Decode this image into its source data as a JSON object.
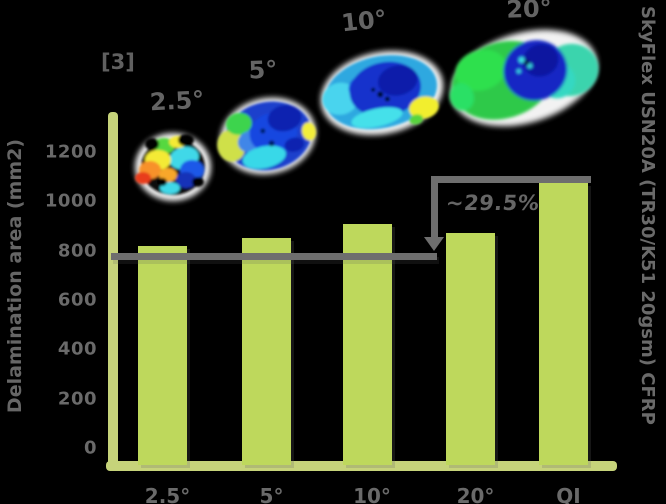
{
  "figure": {
    "citation": "[3]",
    "material_label": "SkyFlex USN20A (TR30/K51 20gsm) CFRP",
    "inset_labels": [
      "2.5°",
      "5°",
      "10°",
      "20°"
    ],
    "colors": {
      "bar_green": "#bed85c",
      "axis_green": "#c6d37a",
      "text_gray": "#6a6a6a",
      "line_gray": "#6e6e6e",
      "background": "#000000"
    }
  },
  "chart_data": {
    "type": "bar",
    "title": "",
    "xlabel": "",
    "ylabel": "Delamination area (mm2)",
    "categories": [
      "2.5°",
      "5°",
      "10°",
      "20°",
      "QI"
    ],
    "values": [
      820,
      850,
      910,
      870,
      1075
    ],
    "yticks": [
      0,
      200,
      400,
      600,
      800,
      1000,
      1200
    ],
    "ylim": [
      0,
      1300
    ],
    "grid": false,
    "legend": false,
    "reference_line_value": 780,
    "annotation": {
      "label": "~29.5%"
    }
  }
}
